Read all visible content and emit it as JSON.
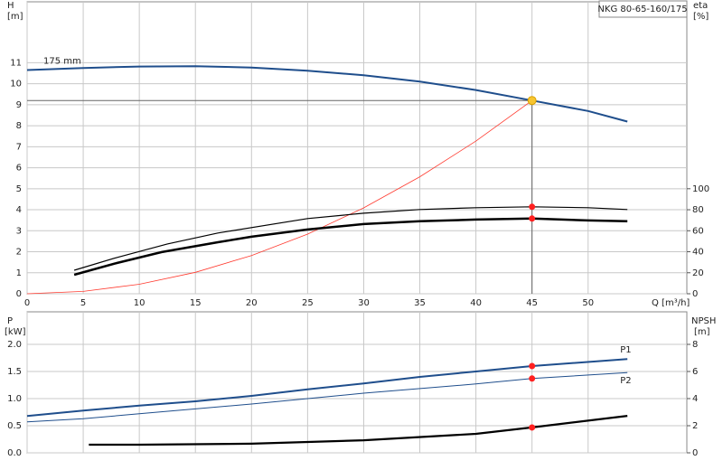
{
  "chart_data": [
    {
      "type": "line",
      "title": "NKG 80-65-160/175",
      "ylabel": "H",
      "yunit": "[m]",
      "y2label": "eta",
      "y2unit": "[%]",
      "xlabel": "Q [m³/h]",
      "xlim": [
        0,
        58.8
      ],
      "xticks": [
        0,
        5,
        10,
        15,
        20,
        25,
        30,
        35,
        40,
        45,
        50
      ],
      "ylim": [
        0,
        13.9
      ],
      "yticks": [
        0,
        1,
        2,
        3,
        4,
        5,
        6,
        7,
        8,
        9,
        10,
        11
      ],
      "y2lim": [
        0,
        278
      ],
      "y2ticks": [
        0,
        20,
        40,
        60,
        80,
        100
      ],
      "grid": true,
      "series": [
        {
          "name": "175 mm",
          "color": "#1f4e8c",
          "width": 2,
          "axis": "y",
          "x": [
            0,
            5,
            10,
            15,
            20,
            25,
            30,
            35,
            40,
            45,
            50,
            53.5
          ],
          "values": [
            10.65,
            10.75,
            10.82,
            10.83,
            10.77,
            10.62,
            10.4,
            10.1,
            9.7,
            9.2,
            8.7,
            8.2
          ]
        },
        {
          "color": "#ff3b30",
          "width": 0.8,
          "axis": "y",
          "x": [
            0,
            5,
            10,
            15,
            20,
            25,
            30,
            35,
            40,
            45
          ],
          "values": [
            0,
            0.11,
            0.45,
            1.02,
            1.82,
            2.84,
            4.09,
            5.57,
            7.27,
            9.2
          ]
        },
        {
          "color": "#000000",
          "width": 1.2,
          "axis": "y2",
          "x": [
            4.2,
            8,
            12.5,
            17,
            25,
            30,
            35,
            40,
            45,
            50,
            53.5
          ],
          "values": [
            22.4,
            34.5,
            47.4,
            57.8,
            71.6,
            76.7,
            80.2,
            81.9,
            82.8,
            81.9,
            80.2
          ]
        },
        {
          "color": "#000000",
          "width": 2.5,
          "axis": "y2",
          "x": [
            4.2,
            8,
            12,
            17,
            20,
            25,
            30,
            35,
            40,
            45,
            50,
            53.5
          ],
          "values": [
            18.1,
            29.3,
            39.7,
            49.1,
            54.3,
            61.2,
            66.4,
            69,
            70.7,
            71.6,
            69.8,
            69
          ]
        }
      ],
      "points": [
        {
          "x": 45,
          "y": 9.2,
          "color": "#f7c530",
          "axis": "y"
        },
        {
          "x": 45,
          "y": 82.8,
          "color": "#ff2020",
          "axis": "y2"
        },
        {
          "x": 45,
          "y": 71.6,
          "color": "#ff2020",
          "axis": "y2"
        }
      ]
    },
    {
      "type": "line",
      "ylabel": "P",
      "yunit": "[kW]",
      "y2label": "NPSH",
      "y2unit": "[m]",
      "xlim": [
        0,
        58.8
      ],
      "xticks": [
        0,
        5,
        10,
        15,
        20,
        25,
        30,
        35,
        40,
        45,
        50
      ],
      "ylim": [
        0,
        2.6
      ],
      "yticks": [
        {
          "value": 0,
          "label": "0.0"
        },
        {
          "value": 0.5,
          "label": "0.5"
        },
        {
          "value": 1,
          "label": "1.0"
        },
        {
          "value": 1.5,
          "label": "1.5"
        },
        {
          "value": 2,
          "label": "2.0"
        }
      ],
      "y2lim": [
        0,
        10.4
      ],
      "y2ticks": [
        0,
        2,
        4,
        6,
        8
      ],
      "grid": true,
      "series": [
        {
          "name": "P1",
          "color": "#1f4e8c",
          "width": 2,
          "axis": "y",
          "x": [
            0,
            5,
            10,
            15,
            20,
            25,
            30,
            35,
            40,
            45,
            53.5
          ],
          "values": [
            0.68,
            0.78,
            0.87,
            0.95,
            1.05,
            1.17,
            1.28,
            1.4,
            1.5,
            1.6,
            1.73
          ]
        },
        {
          "name": "P2",
          "color": "#1f4e8c",
          "width": 1,
          "axis": "y",
          "x": [
            0,
            5,
            10,
            20,
            30,
            40,
            45,
            53.5
          ],
          "values": [
            0.57,
            0.63,
            0.72,
            0.9,
            1.1,
            1.27,
            1.37,
            1.48
          ]
        },
        {
          "color": "#000000",
          "width": 2.2,
          "axis": "y2",
          "x": [
            5.5,
            10,
            20,
            30,
            40,
            45,
            53.5
          ],
          "values": [
            0.6,
            0.6,
            0.67,
            0.93,
            1.4,
            1.87,
            2.73
          ]
        }
      ],
      "points": [
        {
          "x": 45,
          "y": 1.6,
          "color": "#ff2020",
          "axis": "y"
        },
        {
          "x": 45,
          "y": 1.37,
          "color": "#ff2020",
          "axis": "y"
        },
        {
          "x": 45,
          "y": 1.87,
          "color": "#ff2020",
          "axis": "y2"
        }
      ]
    }
  ]
}
